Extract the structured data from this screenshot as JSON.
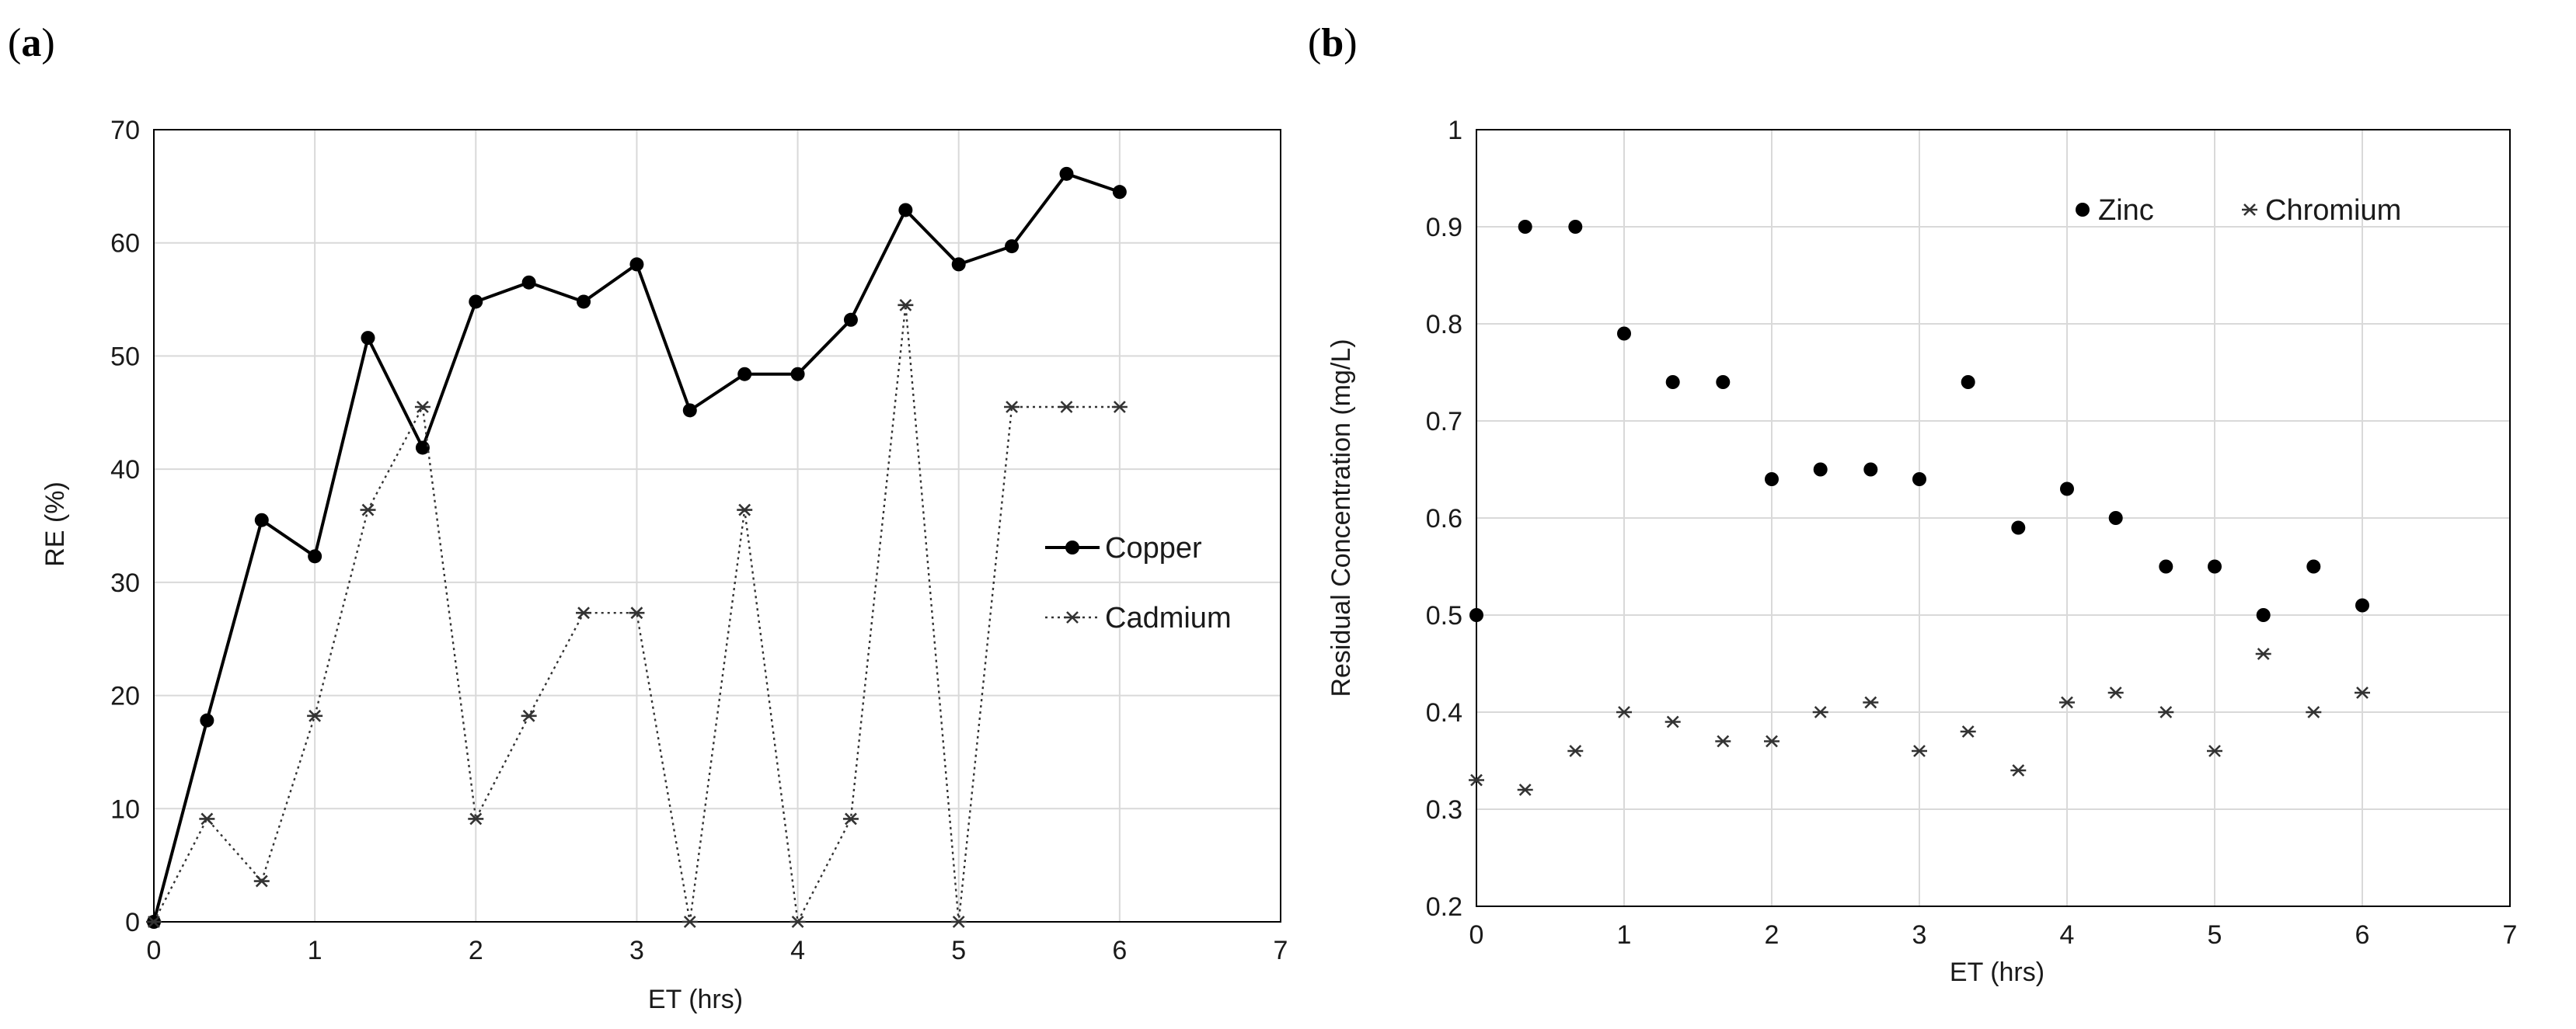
{
  "chart_data": [
    {
      "type": "line",
      "panel": "a",
      "panel_label": "(a)",
      "xlabel": "ET (hrs)",
      "ylabel": "RE (%)",
      "xlim": [
        0,
        7
      ],
      "ylim": [
        0,
        70
      ],
      "xticks": [
        "0",
        "1",
        "2",
        "3",
        "4",
        "5",
        "6",
        "7"
      ],
      "yticks": [
        "0",
        "10",
        "20",
        "30",
        "40",
        "50",
        "60",
        "70"
      ],
      "grid": true,
      "legend_position": "right",
      "x": [
        0,
        0.33,
        0.67,
        1,
        1.33,
        1.67,
        2,
        2.33,
        2.67,
        3,
        3.33,
        3.67,
        4,
        4.33,
        4.67,
        5,
        5.33,
        5.67,
        6
      ],
      "series": [
        {
          "name": "Copper",
          "style": "solid-circle",
          "values": [
            0,
            17.8,
            35.5,
            32.3,
            51.6,
            41.9,
            54.8,
            56.5,
            54.8,
            58.1,
            45.2,
            48.4,
            48.4,
            53.2,
            62.9,
            58.1,
            59.7,
            66.1,
            64.5
          ]
        },
        {
          "name": "Cadmium",
          "style": "dotted-star",
          "values": [
            0,
            9.1,
            3.6,
            18.2,
            36.4,
            45.5,
            9.1,
            18.2,
            27.3,
            27.3,
            0,
            36.4,
            0,
            9.1,
            54.5,
            0,
            45.5,
            45.5,
            45.5
          ]
        }
      ]
    },
    {
      "type": "scatter",
      "panel": "b",
      "panel_label": "(b)",
      "xlabel": "ET (hrs)",
      "ylabel": "Residual Concentration (mg/L)",
      "xlim": [
        0,
        7
      ],
      "ylim": [
        0.2,
        1.0
      ],
      "xticks": [
        "0",
        "1",
        "2",
        "3",
        "4",
        "5",
        "6",
        "7"
      ],
      "yticks": [
        "0.2",
        "0.3",
        "0.4",
        "0.5",
        "0.6",
        "0.7",
        "0.8",
        "0.9",
        "1"
      ],
      "grid": true,
      "legend_position": "top-right",
      "x": [
        0,
        0.33,
        0.67,
        1,
        1.33,
        1.67,
        2,
        2.33,
        2.67,
        3,
        3.33,
        3.67,
        4,
        4.33,
        4.67,
        5,
        5.33,
        5.67,
        6
      ],
      "series": [
        {
          "name": "Zinc",
          "style": "circle",
          "values": [
            0.5,
            0.9,
            0.9,
            0.79,
            0.74,
            0.74,
            0.64,
            0.65,
            0.65,
            0.64,
            0.74,
            0.59,
            0.63,
            0.6,
            0.55,
            0.55,
            0.5,
            0.55,
            0.51
          ]
        },
        {
          "name": "Chromium",
          "style": "star",
          "values": [
            0.33,
            0.32,
            0.36,
            0.4,
            0.39,
            0.37,
            0.37,
            0.4,
            0.41,
            0.36,
            0.38,
            0.34,
            0.41,
            0.42,
            0.4,
            0.36,
            0.46,
            0.4,
            0.42
          ]
        }
      ]
    }
  ]
}
